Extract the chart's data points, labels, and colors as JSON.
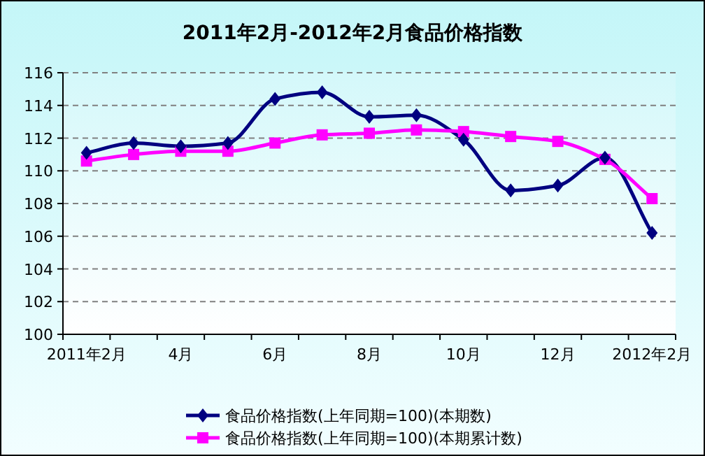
{
  "chart_data": {
    "type": "line",
    "title": "2011年2月-2012年2月食品价格指数",
    "categories": [
      "2011年2月",
      null,
      "4月",
      null,
      "6月",
      null,
      "8月",
      null,
      "10月",
      null,
      "12月",
      null,
      "2012年2月"
    ],
    "series": [
      {
        "name": "食品价格指数(上年同期=100)(本期数)",
        "color": "#000080",
        "marker": "diamond",
        "values": [
          111.1,
          111.7,
          111.5,
          111.7,
          114.4,
          114.8,
          113.3,
          113.4,
          111.9,
          108.8,
          109.1,
          110.8,
          106.2
        ]
      },
      {
        "name": "食品价格指数(上年同期=100)(本期累计数)",
        "color": "#ff00ff",
        "marker": "square",
        "values": [
          110.6,
          111.0,
          111.2,
          111.2,
          111.7,
          112.2,
          112.3,
          112.5,
          112.4,
          112.1,
          111.8,
          110.7,
          108.3
        ]
      }
    ],
    "ylim": [
      100,
      116
    ],
    "yticks": [
      100,
      102,
      104,
      106,
      108,
      110,
      112,
      114,
      116
    ],
    "grid": "y",
    "legend": "bottom",
    "line_style": "solid"
  }
}
